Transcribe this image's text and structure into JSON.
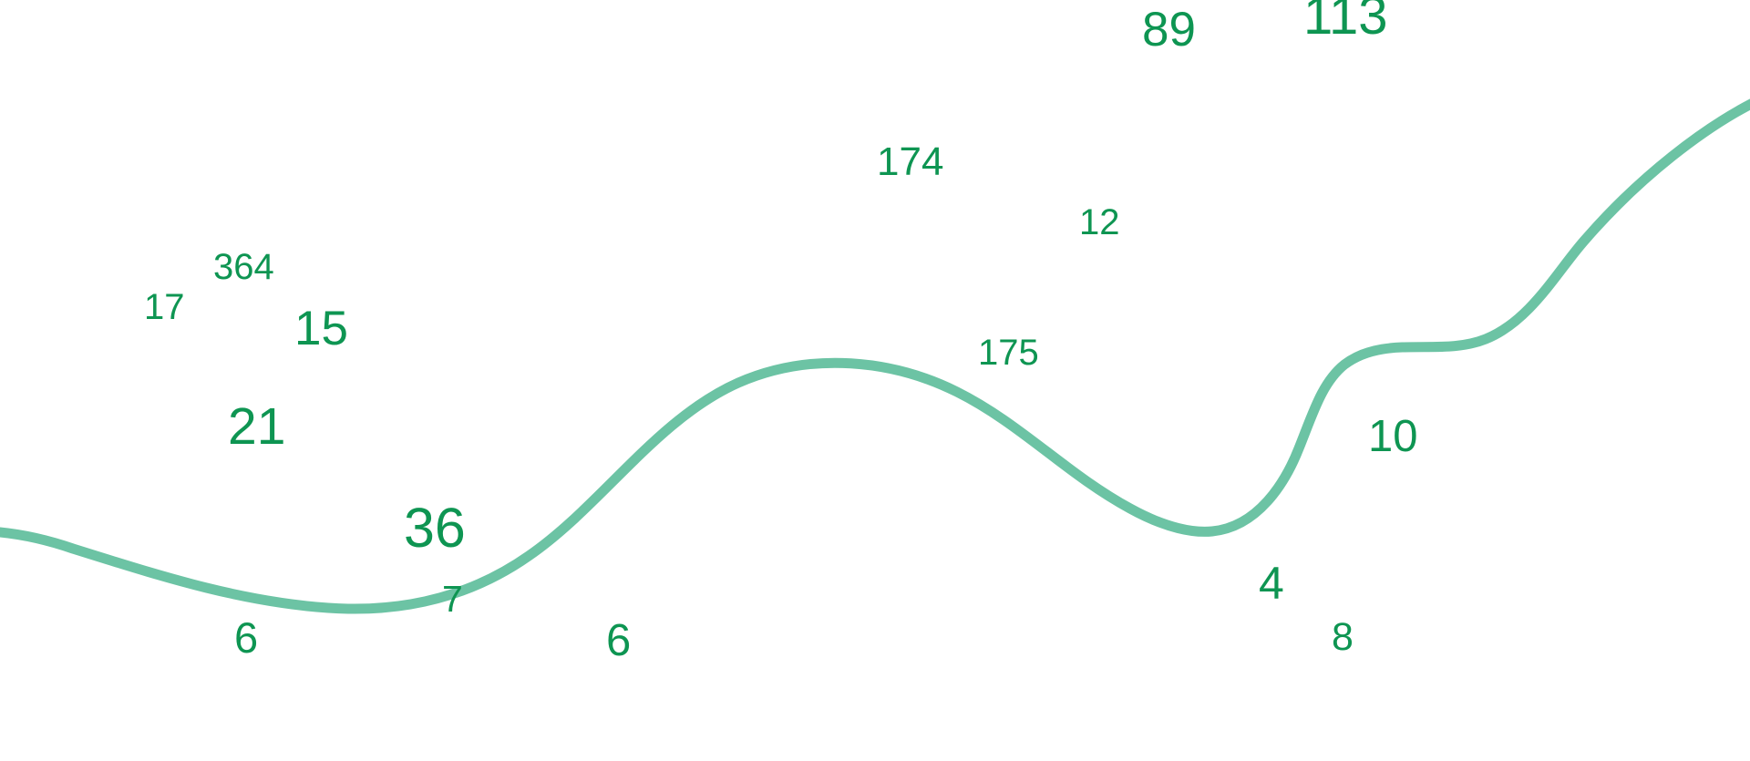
{
  "colors": {
    "number": "#0e9552",
    "curve": "#6cc3a4",
    "background": "#ffffff"
  },
  "numbers": [
    "89",
    "113",
    "174",
    "12",
    "364",
    "17",
    "15",
    "175",
    "21",
    "10",
    "36",
    "4",
    "7",
    "6",
    "6",
    "8"
  ]
}
